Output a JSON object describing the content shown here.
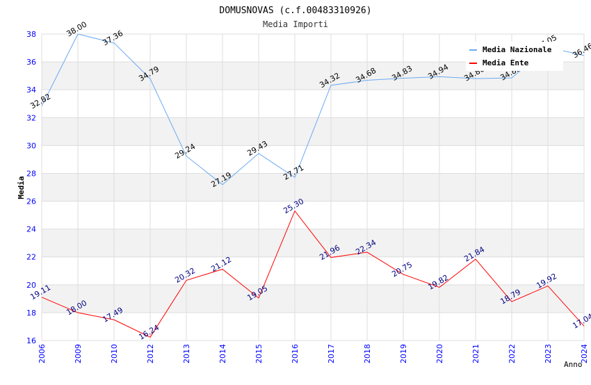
{
  "chart_data": {
    "type": "line",
    "title": "DOMUSNOVAS (c.f.00483310926)",
    "subtitle": "Media Importi",
    "xlabel": "Anno",
    "ylabel": "Media",
    "ylim": [
      16,
      38
    ],
    "yticks": [
      16,
      18,
      20,
      22,
      24,
      26,
      28,
      30,
      32,
      34,
      36,
      38
    ],
    "grid": true,
    "legend_position": "top-right",
    "categories": [
      "2006",
      "2009",
      "2010",
      "2012",
      "2013",
      "2014",
      "2015",
      "2016",
      "2017",
      "2018",
      "2019",
      "2020",
      "2021",
      "2022",
      "2023",
      "2024"
    ],
    "series": [
      {
        "name": "Media Nazionale",
        "color": "#6aaaf0",
        "label_color": "#000000",
        "values": [
          32.82,
          38.0,
          37.36,
          34.79,
          29.24,
          27.19,
          29.43,
          27.71,
          34.32,
          34.68,
          34.83,
          34.94,
          34.8,
          34.85,
          37.05,
          36.46
        ]
      },
      {
        "name": "Media Ente",
        "color": "#ff0000",
        "label_color": "#000080",
        "values": [
          19.11,
          18.0,
          17.49,
          16.24,
          20.32,
          21.12,
          19.05,
          25.3,
          21.96,
          22.34,
          20.75,
          19.82,
          21.84,
          18.79,
          19.92,
          17.04
        ]
      }
    ]
  }
}
